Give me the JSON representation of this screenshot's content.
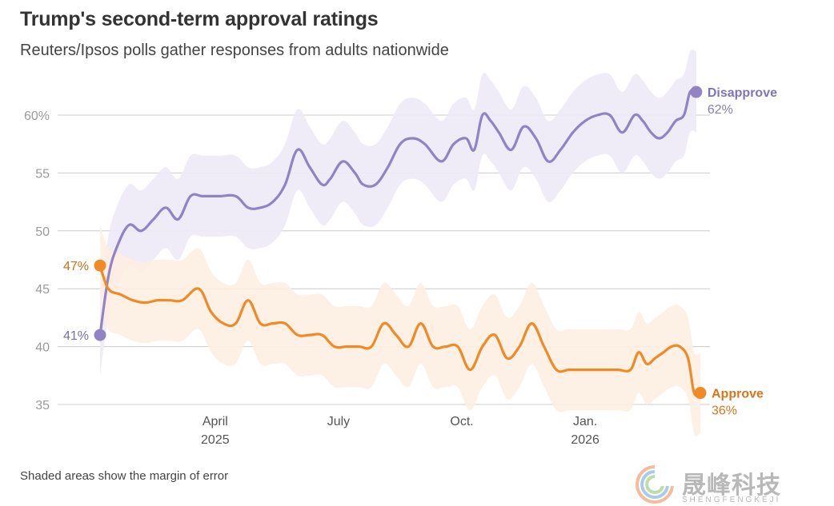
{
  "header": {
    "title": "Trump's second-term approval ratings",
    "subtitle": "Reuters/Ipsos polls gather responses from adults nationwide",
    "footnote": "Shaded areas show the margin of error"
  },
  "colors": {
    "disapprove": "#9283c4",
    "approve": "#f08a26",
    "disapprove_band": "#edeaf6",
    "approve_band": "#fdeee1",
    "grid": "#cccccc"
  },
  "watermark": {
    "name": "晟峰科技",
    "sub": "SHENGFENGKEJI"
  },
  "chart_data": {
    "type": "line",
    "title": "Trump's second-term approval ratings",
    "subtitle": "Reuters/Ipsos polls gather responses from adults nationwide",
    "y_ticks": [
      {
        "value": 35,
        "label": "35"
      },
      {
        "value": 40,
        "label": "40"
      },
      {
        "value": 45,
        "label": "45"
      },
      {
        "value": 50,
        "label": "50"
      },
      {
        "value": 55,
        "label": "55"
      },
      {
        "value": 60,
        "label": "60%"
      }
    ],
    "ylim": [
      34,
      64
    ],
    "x_range_months": [
      0,
      14.6
    ],
    "x_ticks": [
      {
        "month": 2.8,
        "label": "April",
        "sub": "2025"
      },
      {
        "month": 5.8,
        "label": "July",
        "sub": ""
      },
      {
        "month": 8.8,
        "label": "Oct.",
        "sub": ""
      },
      {
        "month": 11.8,
        "label": "Jan.",
        "sub": "2026"
      }
    ],
    "series": [
      {
        "name": "Disapprove",
        "color": "#9283c4",
        "band_color": "#edeaf6",
        "end_label": "Disapprove",
        "end_value_label": "62%",
        "start_value_label": "41%",
        "x": [
          0.0,
          0.2,
          0.4,
          0.7,
          1.0,
          1.3,
          1.6,
          1.9,
          2.2,
          2.5,
          2.9,
          3.3,
          3.6,
          3.9,
          4.2,
          4.5,
          4.8,
          5.1,
          5.4,
          5.6,
          5.9,
          6.2,
          6.4,
          6.7,
          7.0,
          7.3,
          7.6,
          7.9,
          8.3,
          8.6,
          8.9,
          9.1,
          9.3,
          9.5,
          9.7,
          10.0,
          10.3,
          10.6,
          10.9,
          11.2,
          11.5,
          11.8,
          12.1,
          12.4,
          12.7,
          13.0,
          13.2,
          13.4,
          13.6,
          13.8,
          14.0,
          14.2,
          14.35,
          14.5
        ],
        "values": [
          41,
          46,
          48.5,
          50.5,
          50,
          51,
          52,
          51,
          53,
          53,
          53,
          53,
          52,
          52,
          52.5,
          54,
          57,
          55.5,
          54,
          54.5,
          56,
          55,
          54,
          54,
          55.5,
          57.5,
          58,
          57.5,
          56,
          57.5,
          58,
          57,
          60,
          59.5,
          58.5,
          57,
          59,
          58,
          56,
          57,
          58.5,
          59.5,
          60,
          60,
          58.5,
          60,
          59.5,
          58.5,
          58,
          58.5,
          59.5,
          60,
          62,
          62
        ],
        "margin": 3.5
      },
      {
        "name": "Approve",
        "color": "#f08a26",
        "band_color": "#fdeee1",
        "end_label": "Approve",
        "end_value_label": "36%",
        "start_value_label": "47%",
        "x": [
          0.0,
          0.2,
          0.5,
          0.8,
          1.1,
          1.4,
          1.7,
          2.0,
          2.4,
          2.7,
          3.0,
          3.3,
          3.6,
          3.9,
          4.2,
          4.5,
          4.8,
          5.1,
          5.4,
          5.7,
          6.0,
          6.3,
          6.6,
          6.9,
          7.2,
          7.5,
          7.8,
          8.1,
          8.4,
          8.7,
          9.0,
          9.3,
          9.6,
          9.9,
          10.2,
          10.5,
          10.8,
          11.1,
          11.4,
          11.7,
          12.0,
          12.3,
          12.6,
          12.9,
          13.1,
          13.3,
          13.5,
          13.7,
          13.9,
          14.1,
          14.3,
          14.45,
          14.6
        ],
        "values": [
          47,
          45,
          44.5,
          44,
          43.8,
          44,
          44,
          44,
          45,
          43,
          42,
          42,
          44,
          42,
          42,
          42,
          41,
          41,
          41,
          40,
          40,
          40,
          40,
          42,
          41,
          40,
          42,
          40,
          40,
          40,
          38,
          40,
          41,
          39,
          40,
          42,
          40,
          38,
          38,
          38,
          38,
          38,
          38,
          38,
          39.5,
          38.5,
          39,
          39.5,
          40,
          40,
          39,
          36,
          36
        ],
        "margin": 3.5
      }
    ]
  }
}
